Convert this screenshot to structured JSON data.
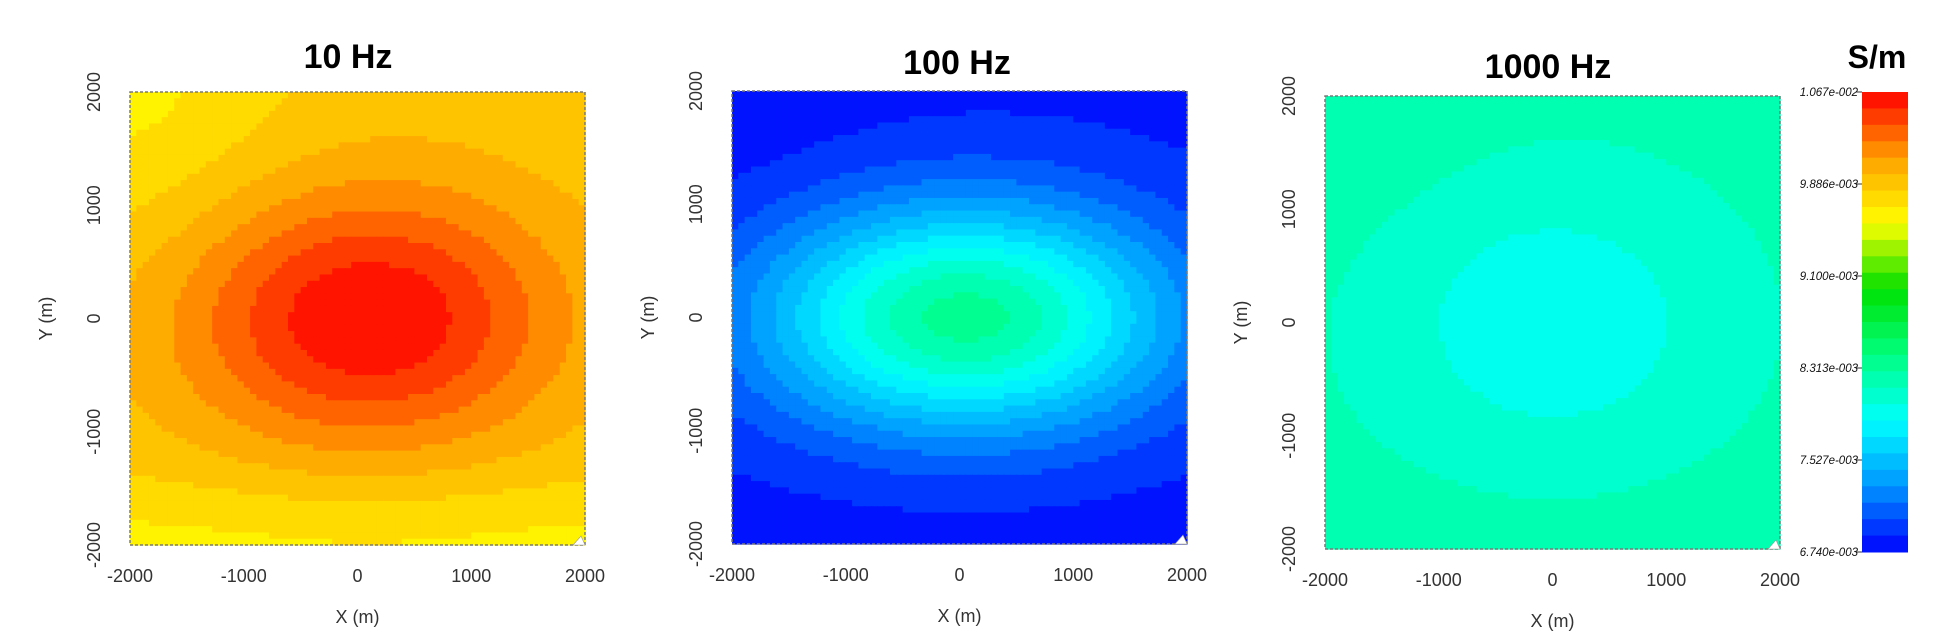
{
  "chart_data": [
    {
      "type": "heatmap",
      "title": "10 Hz",
      "xlabel": "X (m)",
      "ylabel": "Y (m)",
      "xlim": [
        -2000,
        2000
      ],
      "ylim": [
        -2000,
        2000
      ],
      "xticks": [
        "-2000",
        "-1000",
        "0",
        "1000",
        "2000"
      ],
      "yticks": [
        "-2000",
        "-1000",
        "0",
        "1000",
        "2000"
      ],
      "field": {
        "base": 0.00987,
        "peak": 0.01067,
        "peak_x": 100,
        "peak_y": 0,
        "sigma_x": 1150,
        "sigma_y": 800,
        "top_left": 0.00965,
        "bottom": 0.00965
      }
    },
    {
      "type": "heatmap",
      "title": "100 Hz",
      "xlabel": "X (m)",
      "ylabel": "Y (m)",
      "xlim": [
        -2000,
        2000
      ],
      "ylim": [
        -2000,
        2000
      ],
      "xticks": [
        "-2000",
        "-1000",
        "0",
        "1000",
        "2000"
      ],
      "yticks": [
        "-2000",
        "-1000",
        "0",
        "1000",
        "2000"
      ],
      "field": {
        "base": 0.00683,
        "peak": 0.00835,
        "peak_x": 50,
        "peak_y": 0,
        "sigma_x": 1250,
        "sigma_y": 700,
        "top_left": 0.00678,
        "bottom": 0.0068
      }
    },
    {
      "type": "heatmap",
      "title": "1000 Hz",
      "xlabel": "X (m)",
      "ylabel": "Y (m)",
      "xlim": [
        -2000,
        2000
      ],
      "ylim": [
        -2000,
        2000
      ],
      "xticks": [
        "-2000",
        "-1000",
        "0",
        "1000",
        "2000"
      ],
      "yticks": [
        "-2000",
        "-1000",
        "0",
        "1000",
        "2000"
      ],
      "field": {
        "base": 0.0082,
        "peak": 0.0079,
        "peak_x": 0,
        "peak_y": 0,
        "sigma_x": 1100,
        "sigma_y": 900,
        "top_left": 0.00825,
        "bottom": 0.00822
      }
    }
  ],
  "colorbar": {
    "unit": "S/m",
    "min": 0.00674,
    "max": 0.01067,
    "labels": [
      "1.067e-002",
      "9.886e-003",
      "9.100e-003",
      "8.313e-003",
      "7.527e-003",
      "6.740e-003"
    ],
    "bands": 28,
    "colors": [
      "#0000ff",
      "#0096ff",
      "#00ffff",
      "#00ff80",
      "#00e000",
      "#ffff00",
      "#ffa000",
      "#ff0000"
    ]
  }
}
